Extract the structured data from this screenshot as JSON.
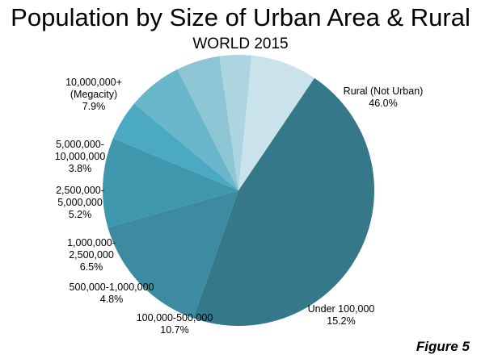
{
  "chart_data": {
    "type": "pie",
    "title": "Population by Size of Urban Area & Rural",
    "subtitle": "WORLD 2015",
    "slices": [
      {
        "label": [
          "Rural (Not Urban)"
        ],
        "value": 46.0,
        "pct": "46.0%",
        "color": "#35788a"
      },
      {
        "label": [
          "Under 100,000"
        ],
        "value": 15.2,
        "pct": "15.2%",
        "color": "#3d8ba0"
      },
      {
        "label": [
          "100,000-500,000"
        ],
        "value": 10.7,
        "pct": "10.7%",
        "color": "#3f97ae"
      },
      {
        "label": [
          "500,000-1,000,000"
        ],
        "value": 4.8,
        "pct": "4.8%",
        "color": "#4ba9c1"
      },
      {
        "label": [
          "1,000,000-",
          "2,500,000"
        ],
        "value": 6.5,
        "pct": "6.5%",
        "color": "#6ab6ca"
      },
      {
        "label": [
          "2,500,000-",
          "5,000,000"
        ],
        "value": 5.2,
        "pct": "5.2%",
        "color": "#8ec5d4"
      },
      {
        "label": [
          "5,000,000-",
          "10,000,000"
        ],
        "value": 3.8,
        "pct": "3.8%",
        "color": "#add5df"
      },
      {
        "label": [
          "10,000,000+",
          "(Megacity)"
        ],
        "value": 7.9,
        "pct": "7.9%",
        "color": "#cae2e9"
      }
    ]
  },
  "figure_label": "Figure 5"
}
